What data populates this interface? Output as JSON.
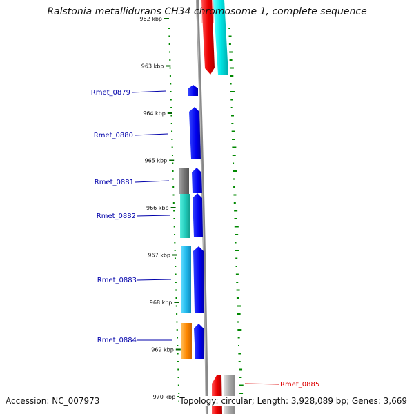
{
  "title": "Ralstonia metallidurans CH34 chromosome 1, complete sequence",
  "accession": "Accession: NC_007973",
  "topology": "Topology: circular; Length: 3,928,089 bp; Genes: 3,669",
  "ticks": [
    "962 kbp",
    "963 kbp",
    "964 kbp",
    "965 kbp",
    "966 kbp",
    "967 kbp",
    "968 kbp",
    "969 kbp",
    "970 kbp"
  ],
  "genes": [
    {
      "name": "Rmet_0879",
      "color": "#0000aa"
    },
    {
      "name": "Rmet_0880",
      "color": "#0000aa"
    },
    {
      "name": "Rmet_0881",
      "color": "#0000aa"
    },
    {
      "name": "Rmet_0882",
      "color": "#0000aa"
    },
    {
      "name": "Rmet_0883",
      "color": "#0000aa"
    },
    {
      "name": "Rmet_0884",
      "color": "#0000aa"
    },
    {
      "name": "Rmet_0885",
      "color": "#dd0000"
    }
  ],
  "colors": {
    "cds_forward": "#0000ee",
    "cds_reverse": "#ee0000",
    "cog_cyan": "#00e5e5",
    "cog_lightblue": "#22bbee",
    "cog_teal": "#22ccbb",
    "cog_orange": "#ff8800",
    "cog_gray": "#777777",
    "gc_skew": "#008800",
    "backbone": "#888888"
  }
}
